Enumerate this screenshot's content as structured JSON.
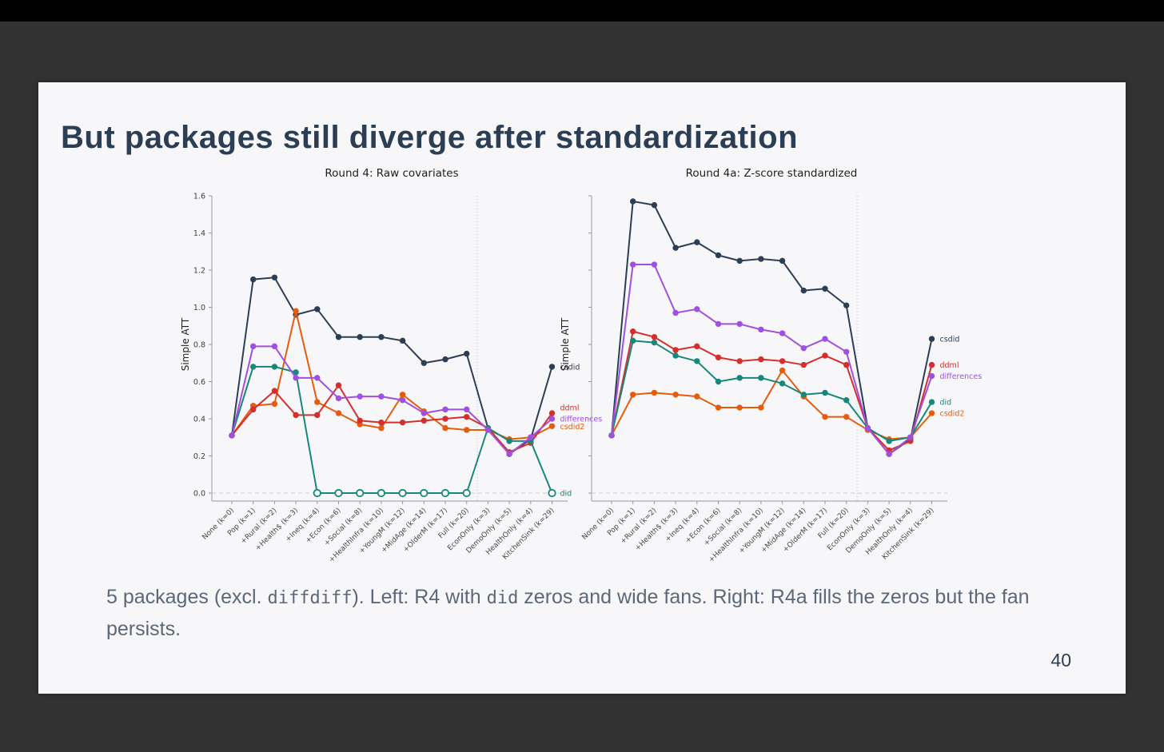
{
  "title": "But packages still diverge after standardization",
  "page": {
    "number": "40"
  },
  "caption": {
    "p1": "5 packages (excl. ",
    "m1": "diffdiff",
    "p2": ").  Left: R4 with ",
    "m2": "did",
    "p3": " zeros and wide fans.  Right: R4a fills the zeros but the fan persists."
  },
  "colors": {
    "top_bar": "#000000",
    "frame_bg": "#323233",
    "slide_bg": "#f7f7f9",
    "title_text": "#2c3e54",
    "caption_text": "#5c6878",
    "axis": "#9a9a9a",
    "tick_label": "#3c3c3c",
    "zero_line": "#cccccc",
    "separator_line": "#bbbbbb",
    "csdid": "#2d3e54",
    "ddml": "#d62e2a",
    "differences": "#a050e0",
    "csdid2": "#e65c0f",
    "did": "#17877b"
  },
  "chart_data": [
    {
      "type": "line",
      "title": "Round 4: Raw covariates",
      "ylabel": "Simple ATT",
      "ylim": [
        0,
        1.6
      ],
      "ytick_values": [
        0,
        0.2,
        0.4,
        0.6,
        0.8,
        1.0,
        1.2,
        1.4,
        1.6
      ],
      "ytick_labels": [
        "0.0",
        "0.2",
        "0.4",
        "0.6",
        "0.8",
        "1.0",
        "1.2",
        "1.4",
        "1.6"
      ],
      "zero_dashed_line": true,
      "separator_after_index": 11,
      "legend_position": "right-end-labels",
      "grid": false,
      "categories": [
        "None (k=0)",
        "Pop (k=1)",
        "+Rural (k=2)",
        "+Health$ (k=3)",
        "+Ineq (k=4)",
        "+Econ (k=6)",
        "+Social (k=8)",
        "+HealthInfra (k=10)",
        "+YoungM (k=12)",
        "+MidAge (k=14)",
        "+OlderM (k=17)",
        "Full (k=20)",
        "EconOnly (k=3)",
        "DemoOnly (k=5)",
        "HealthOnly (k=4)",
        "KitchenSink (k=29)"
      ],
      "series": [
        {
          "name": "csdid",
          "color_key": "csdid",
          "values": [
            0.31,
            1.15,
            1.16,
            0.96,
            0.99,
            0.84,
            0.84,
            0.84,
            0.82,
            0.7,
            0.72,
            0.75,
            0.35,
            0.21,
            0.29,
            0.68
          ],
          "open_points": [],
          "label_dy": 0
        },
        {
          "name": "csdid2",
          "color_key": "csdid2",
          "values": [
            0.31,
            0.47,
            0.48,
            0.98,
            0.49,
            0.43,
            0.37,
            0.35,
            0.53,
            0.44,
            0.35,
            0.34,
            0.34,
            0.29,
            0.3,
            0.36
          ],
          "open_points": [],
          "label_dy": 0
        },
        {
          "name": "ddml",
          "color_key": "ddml",
          "values": [
            0.31,
            0.45,
            0.55,
            0.42,
            0.42,
            0.58,
            0.39,
            0.38,
            0.38,
            0.39,
            0.4,
            0.41,
            0.35,
            0.22,
            0.27,
            0.43
          ],
          "open_points": [],
          "label_dy": -7
        },
        {
          "name": "did",
          "color_key": "did",
          "values": [
            0.31,
            0.68,
            0.68,
            0.65,
            0.0,
            0.0,
            0.0,
            0.0,
            0.0,
            0.0,
            0.0,
            0.0,
            0.35,
            0.28,
            0.28,
            0.0
          ],
          "open_points": [
            4,
            5,
            6,
            7,
            8,
            9,
            10,
            11,
            15
          ],
          "label_dy": 0
        },
        {
          "name": "differences",
          "color_key": "differences",
          "values": [
            0.31,
            0.79,
            0.79,
            0.62,
            0.62,
            0.51,
            0.52,
            0.52,
            0.5,
            0.43,
            0.45,
            0.45,
            0.34,
            0.21,
            0.3,
            0.4
          ],
          "open_points": [],
          "label_dy": 0
        }
      ]
    },
    {
      "type": "line",
      "title": "Round 4a: Z-score standardized",
      "ylabel": "Simple ATT",
      "ylim": [
        0,
        1.6
      ],
      "ytick_values": [
        0,
        0.2,
        0.4,
        0.6,
        0.8,
        1.0,
        1.2,
        1.4,
        1.6
      ],
      "ytick_labels": [],
      "zero_dashed_line": true,
      "separator_after_index": 11,
      "legend_position": "right-end-labels",
      "grid": false,
      "categories": [
        "None (k=0)",
        "Pop (k=1)",
        "+Rural (k=2)",
        "+Health$ (k=3)",
        "+Ineq (k=4)",
        "+Econ (k=6)",
        "+Social (k=8)",
        "+HealthInfra (k=10)",
        "+YoungM (k=12)",
        "+MidAge (k=14)",
        "+OlderM (k=17)",
        "Full (k=20)",
        "EconOnly (k=3)",
        "DemoOnly (k=5)",
        "HealthOnly (k=4)",
        "KitchenSink (k=29)"
      ],
      "series": [
        {
          "name": "csdid",
          "color_key": "csdid",
          "values": [
            0.31,
            1.57,
            1.55,
            1.32,
            1.35,
            1.28,
            1.25,
            1.26,
            1.25,
            1.09,
            1.1,
            1.01,
            0.35,
            0.21,
            0.29,
            0.83
          ],
          "open_points": [],
          "label_dy": 0
        },
        {
          "name": "csdid2",
          "color_key": "csdid2",
          "values": [
            0.31,
            0.53,
            0.54,
            0.53,
            0.52,
            0.46,
            0.46,
            0.46,
            0.66,
            0.52,
            0.41,
            0.41,
            0.34,
            0.29,
            0.3,
            0.43
          ],
          "open_points": [],
          "label_dy": 0
        },
        {
          "name": "ddml",
          "color_key": "ddml",
          "values": [
            0.31,
            0.87,
            0.84,
            0.77,
            0.79,
            0.73,
            0.71,
            0.72,
            0.71,
            0.69,
            0.74,
            0.69,
            0.35,
            0.23,
            0.28,
            0.69
          ],
          "open_points": [],
          "label_dy": 0
        },
        {
          "name": "did",
          "color_key": "did",
          "values": [
            0.31,
            0.82,
            0.81,
            0.74,
            0.71,
            0.6,
            0.62,
            0.62,
            0.59,
            0.53,
            0.54,
            0.5,
            0.35,
            0.28,
            0.3,
            0.49
          ],
          "open_points": [],
          "label_dy": 0
        },
        {
          "name": "differences",
          "color_key": "differences",
          "values": [
            0.31,
            1.23,
            1.23,
            0.97,
            0.99,
            0.91,
            0.91,
            0.88,
            0.86,
            0.78,
            0.83,
            0.76,
            0.35,
            0.21,
            0.3,
            0.63
          ],
          "open_points": [],
          "label_dy": 0
        }
      ]
    }
  ]
}
